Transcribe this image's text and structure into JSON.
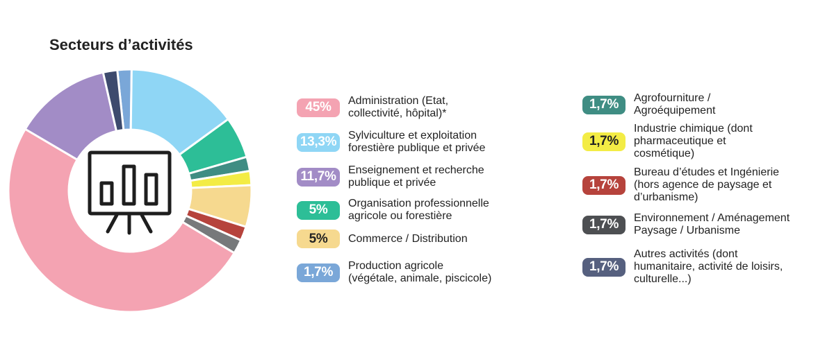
{
  "title": "Secteurs d’activités",
  "icon": "presentation-chart-icon",
  "chart_data": {
    "type": "pie",
    "title": "Secteurs d’activités",
    "donut": true,
    "categories": [
      "Administration (Etat, collectivité, hôpital)*",
      "Sylviculture et exploitation forestière publique et privée",
      "Enseignement et recherche publique et privée",
      "Organisation professionnelle agricole ou forestière",
      "Commerce / Distribution",
      "Production agricole (végétale, animale, piscicole)",
      "Agrofourniture / Agroéquipement",
      "Industrie chimique (dont pharmaceutique et cosmétique)",
      "Bureau d’études et Ingénierie (hors agence de paysage et d’urbanisme)",
      "Environnement / Aménagement Paysage / Urbanisme",
      "Autres activités (dont humanitaire, activité de loisirs, culturelle...)"
    ],
    "values": [
      45,
      13.3,
      11.7,
      5,
      5,
      1.7,
      1.7,
      1.7,
      1.7,
      1.7,
      1.7
    ],
    "slice_order": [
      5,
      1,
      3,
      6,
      7,
      4,
      8,
      9,
      0,
      2,
      10
    ],
    "colors": [
      "#f4a3b2",
      "#8fd6f5",
      "#a28cc6",
      "#2dbe97",
      "#f6d98f",
      "#7aa7d8",
      "#3f8d83",
      "#f3ec45",
      "#b6433c",
      "#77797b",
      "#3d4a6d"
    ]
  },
  "legend": [
    {
      "value": "45%",
      "label": "Administration (Etat,\ncollectivité, hôpital)*",
      "color": "#f4a3b2"
    },
    {
      "value": "13,3%",
      "label": "Sylviculture et exploitation\nforestière publique et privée",
      "color": "#8fd6f5"
    },
    {
      "value": "11,7%",
      "label": "Enseignement et recherche\npublique et privée",
      "color": "#a28cc6"
    },
    {
      "value": "5%",
      "label": "Organisation professionnelle\nagricole ou forestière",
      "color": "#2dbe97"
    },
    {
      "value": "5%",
      "label": "Commerce / Distribution",
      "color": "#f6d98f",
      "dark": true
    },
    {
      "value": "1,7%",
      "label": "Production agricole\n(végétale, animale, piscicole)",
      "color": "#7aa7d8"
    },
    {
      "value": "1,7%",
      "label": "Agrofourniture /\nAgroéquipement",
      "color": "#3f8d83"
    },
    {
      "value": "1,7%",
      "label": "Industrie chimique (dont\npharmaceutique et\ncosmétique)",
      "color": "#f3ec45",
      "dark": true
    },
    {
      "value": "1,7%",
      "label": "Bureau d’études et Ingénierie\n(hors agence de paysage et\nd’urbanisme)",
      "color": "#b6433c"
    },
    {
      "value": "1,7%",
      "label": "Environnement / Aménagement\nPaysage / Urbanisme",
      "color": "#4d4f52"
    },
    {
      "value": "1,7%",
      "label": "Autres activités (dont\nhumanitaire, activité de loisirs,\nculturelle...)",
      "color": "#56607f"
    }
  ]
}
